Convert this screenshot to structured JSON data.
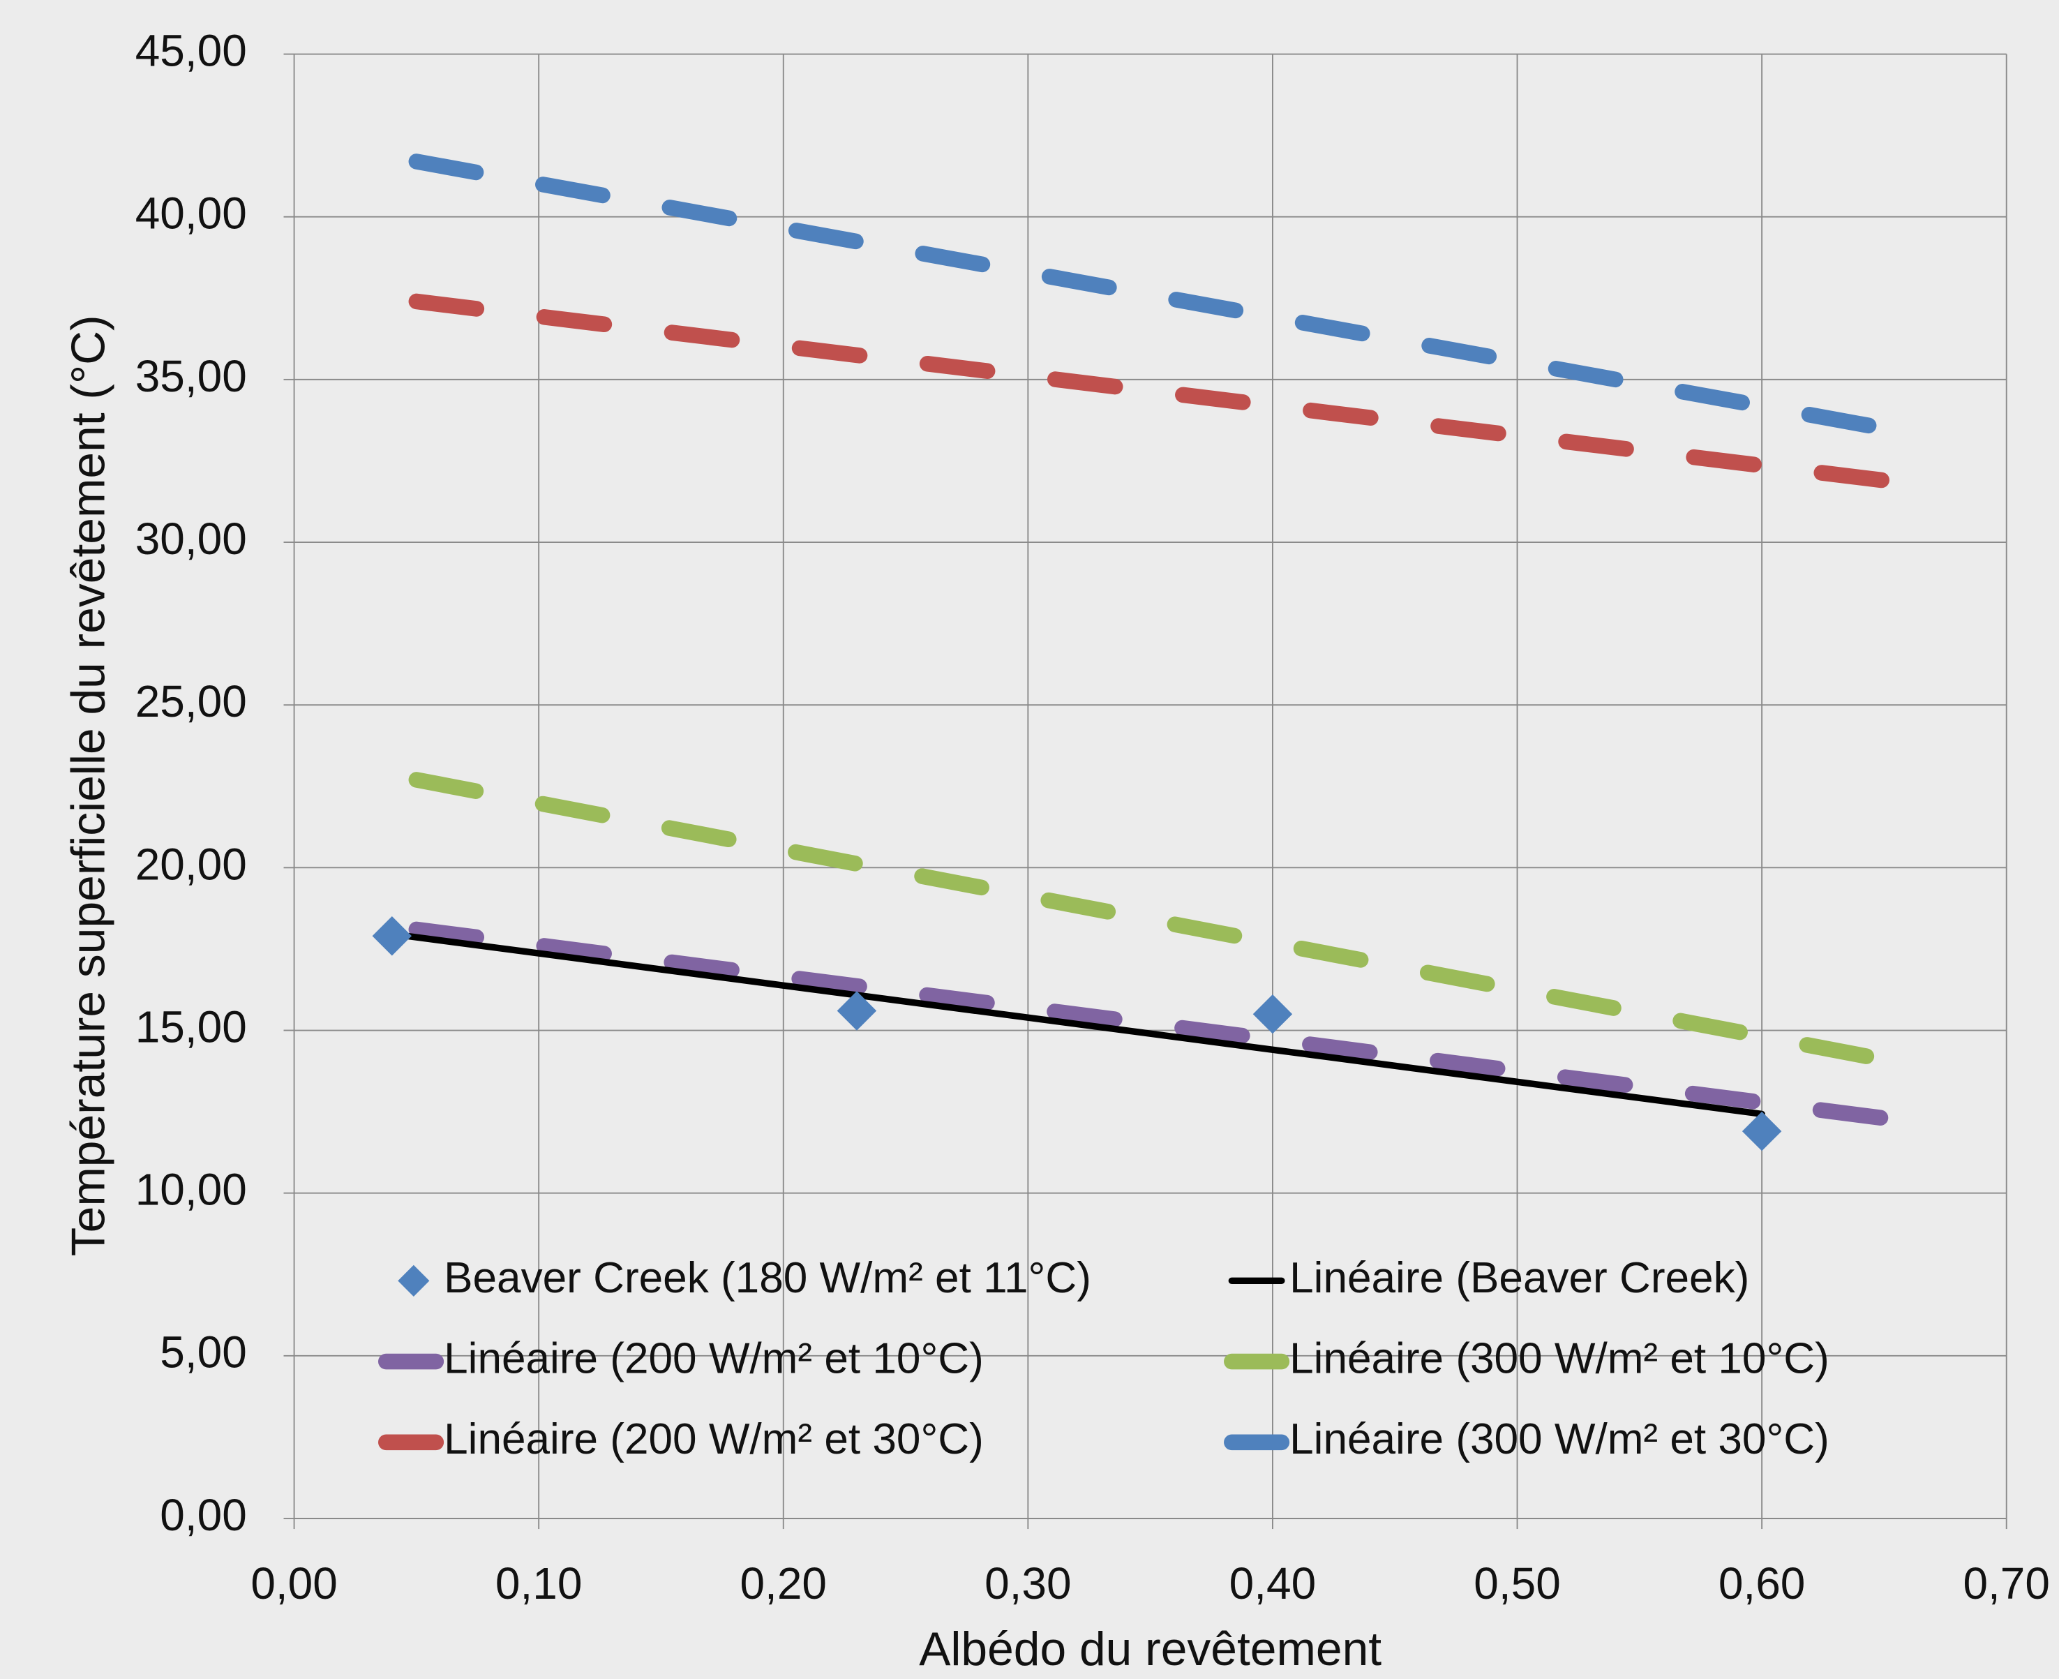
{
  "chart_data": {
    "type": "scatter",
    "x_label": "Albédo du revêtement",
    "y_label": "Température superficielle du revêtement (°C)",
    "xlim": [
      0,
      0.7
    ],
    "ylim": [
      0,
      45
    ],
    "xticks": [
      {
        "value": 0,
        "label": "0,00"
      },
      {
        "value": 0.1,
        "label": "0,10"
      },
      {
        "value": 0.2,
        "label": "0,20"
      },
      {
        "value": 0.3,
        "label": "0,30"
      },
      {
        "value": 0.4,
        "label": "0,40"
      },
      {
        "value": 0.5,
        "label": "0,50"
      },
      {
        "value": 0.6,
        "label": "0,60"
      },
      {
        "value": 0.7,
        "label": "0,70"
      }
    ],
    "yticks": [
      {
        "value": 0,
        "label": "0,00"
      },
      {
        "value": 5,
        "label": "5,00"
      },
      {
        "value": 10,
        "label": "10,00"
      },
      {
        "value": 15,
        "label": "15,00"
      },
      {
        "value": 20,
        "label": "20,00"
      },
      {
        "value": 25,
        "label": "25,00"
      },
      {
        "value": 30,
        "label": "30,00"
      },
      {
        "value": 35,
        "label": "35,00"
      },
      {
        "value": 40,
        "label": "40,00"
      },
      {
        "value": 45,
        "label": "45,00"
      }
    ],
    "grid": true,
    "legend": "bottom",
    "series": [
      {
        "name": "Beaver Creek (180 W/m² et 11°C)",
        "style": "marker",
        "color": "#4f81bd",
        "x": [
          0.04,
          0.23,
          0.4,
          0.6
        ],
        "values": [
          17.9,
          15.6,
          15.5,
          11.9
        ]
      },
      {
        "name": "Linéaire (Beaver Creek)",
        "style": "solid",
        "color": "#000000",
        "x": [
          0.04,
          0.6
        ],
        "values": [
          17.96,
          12.43
        ]
      },
      {
        "name": "Linéaire (200 W/m² et 10°C)",
        "style": "dashed",
        "color": "#8064a2",
        "x": [
          0.05,
          0.65
        ],
        "values": [
          18.1,
          12.3
        ]
      },
      {
        "name": "Linéaire (300 W/m² et 10°C)",
        "style": "dashed",
        "color": "#9bbb59",
        "x": [
          0.05,
          0.65
        ],
        "values": [
          22.7,
          14.1
        ]
      },
      {
        "name": "Linéaire (200 W/m² et 30°C)",
        "style": "dashed",
        "color": "#c0504d",
        "x": [
          0.05,
          0.65
        ],
        "values": [
          37.4,
          31.9
        ]
      },
      {
        "name": "Linéaire (300 W/m² et 30°C)",
        "style": "dashed",
        "color": "#4f81bd",
        "x": [
          0.05,
          0.65
        ],
        "values": [
          41.7,
          33.5
        ]
      }
    ]
  }
}
